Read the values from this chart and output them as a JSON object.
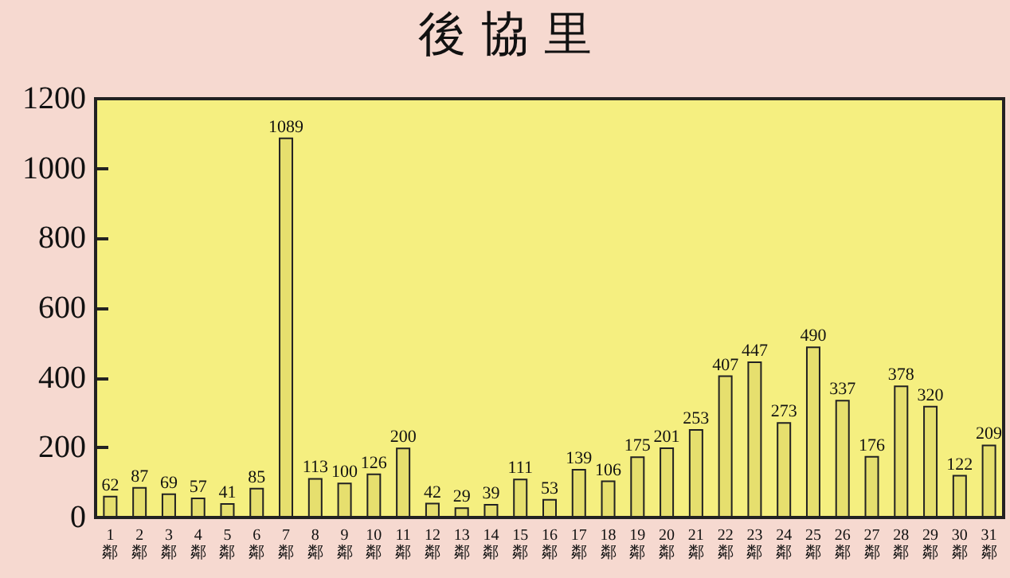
{
  "chart_data": {
    "type": "bar",
    "title": "後 協 里",
    "categories": [
      "1\n鄰",
      "2\n鄰",
      "3\n鄰",
      "4\n鄰",
      "5\n鄰",
      "6\n鄰",
      "7\n鄰",
      "8\n鄰",
      "9\n鄰",
      "10\n鄰",
      "11\n鄰",
      "12\n鄰",
      "13\n鄰",
      "14\n鄰",
      "15\n鄰",
      "16\n鄰",
      "17\n鄰",
      "18\n鄰",
      "19\n鄰",
      "20\n鄰",
      "21\n鄰",
      "22\n鄰",
      "23\n鄰",
      "24\n鄰",
      "25\n鄰",
      "26\n鄰",
      "27\n鄰",
      "28\n鄰",
      "29\n鄰",
      "30\n鄰",
      "31\n鄰"
    ],
    "values": [
      62,
      87,
      69,
      57,
      41,
      85,
      1089,
      113,
      100,
      126,
      200,
      42,
      29,
      39,
      111,
      53,
      139,
      106,
      175,
      201,
      253,
      407,
      447,
      273,
      490,
      337,
      176,
      378,
      320,
      122,
      209
    ],
    "color": "#e6df6e",
    "ylim": [
      0,
      1200
    ],
    "yticks": [
      0,
      200,
      400,
      600,
      800,
      1000,
      1200
    ],
    "grid": false,
    "data_labels": true
  }
}
